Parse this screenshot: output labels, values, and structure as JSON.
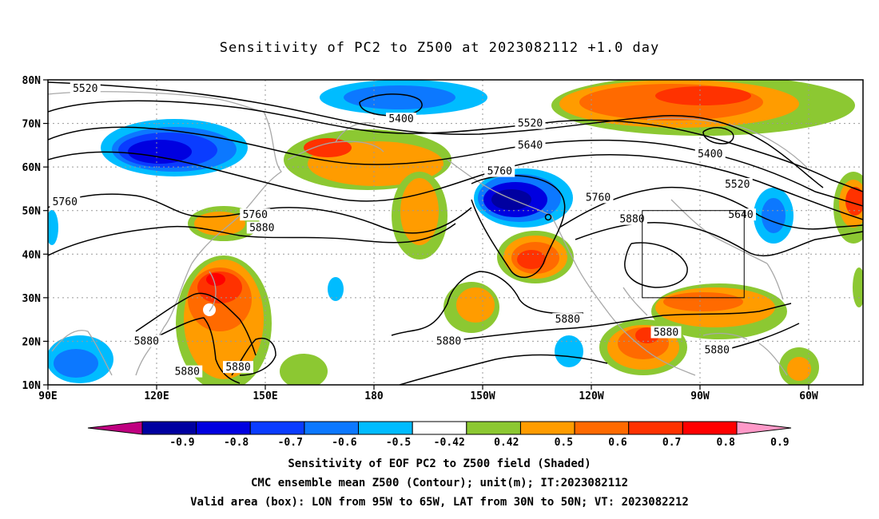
{
  "title": "Sensitivity of PC2 to Z500 at 2023082112 +1.0 day",
  "lat_labels": [
    "80N",
    "70N",
    "60N",
    "50N",
    "40N",
    "30N",
    "20N",
    "10N"
  ],
  "lon_labels": [
    "90E",
    "120E",
    "150E",
    "180",
    "150W",
    "120W",
    "90W",
    "60W"
  ],
  "contour_labels": [
    {
      "text": "5520",
      "lon": 101,
      "lat": 78
    },
    {
      "text": "5400",
      "lon": 194,
      "lat": 71
    },
    {
      "text": "5520",
      "lon": 232,
      "lat": 70
    },
    {
      "text": "5640",
      "lon": 232,
      "lat": 65
    },
    {
      "text": "5400",
      "lon": 285,
      "lat": 63
    },
    {
      "text": "5760",
      "lon": 223,
      "lat": 59
    },
    {
      "text": "5760",
      "lon": 95,
      "lat": 52
    },
    {
      "text": "5760",
      "lon": 151,
      "lat": 49
    },
    {
      "text": "5880",
      "lon": 153,
      "lat": 46
    },
    {
      "text": "5760",
      "lon": 252,
      "lat": 53
    },
    {
      "text": "5520",
      "lon": 293,
      "lat": 56
    },
    {
      "text": "5640",
      "lon": 294,
      "lat": 49
    },
    {
      "text": "5880",
      "lon": 262,
      "lat": 48
    },
    {
      "text": "5880",
      "lon": 243,
      "lat": 25
    },
    {
      "text": "5880",
      "lon": 272,
      "lat": 22
    },
    {
      "text": "5880",
      "lon": 208,
      "lat": 20
    },
    {
      "text": "5880",
      "lon": 119,
      "lat": 20
    },
    {
      "text": "5880",
      "lon": 131,
      "lat": 13
    },
    {
      "text": "5880",
      "lon": 146,
      "lat": 14
    },
    {
      "text": "5880",
      "lon": 287,
      "lat": 18
    }
  ],
  "valid_box": {
    "lon_min": 265,
    "lon_max": 295,
    "lat_min": 30,
    "lat_max": 50
  },
  "colorbar": {
    "labels": [
      "-0.9",
      "-0.8",
      "-0.7",
      "-0.6",
      "-0.5",
      "-0.42",
      "0.42",
      "0.5",
      "0.6",
      "0.7",
      "0.8",
      "0.9"
    ],
    "colors": [
      "#bf0080",
      "#0000a0",
      "#0000e0",
      "#0a3cff",
      "#0c78ff",
      "#00bcff",
      "#ffffff",
      "#8cc832",
      "#ff9c00",
      "#ff6a00",
      "#ff3200",
      "#ff0000",
      "#ff99c8"
    ]
  },
  "footer": [
    "Sensitivity of EOF PC2 to Z500 field (Shaded)",
    "CMC ensemble mean Z500 (Contour); unit(m); IT:2023082112",
    "Valid area (box): LON from 95W to 65W, LAT from 30N to 50N; VT: 2023082212"
  ]
}
